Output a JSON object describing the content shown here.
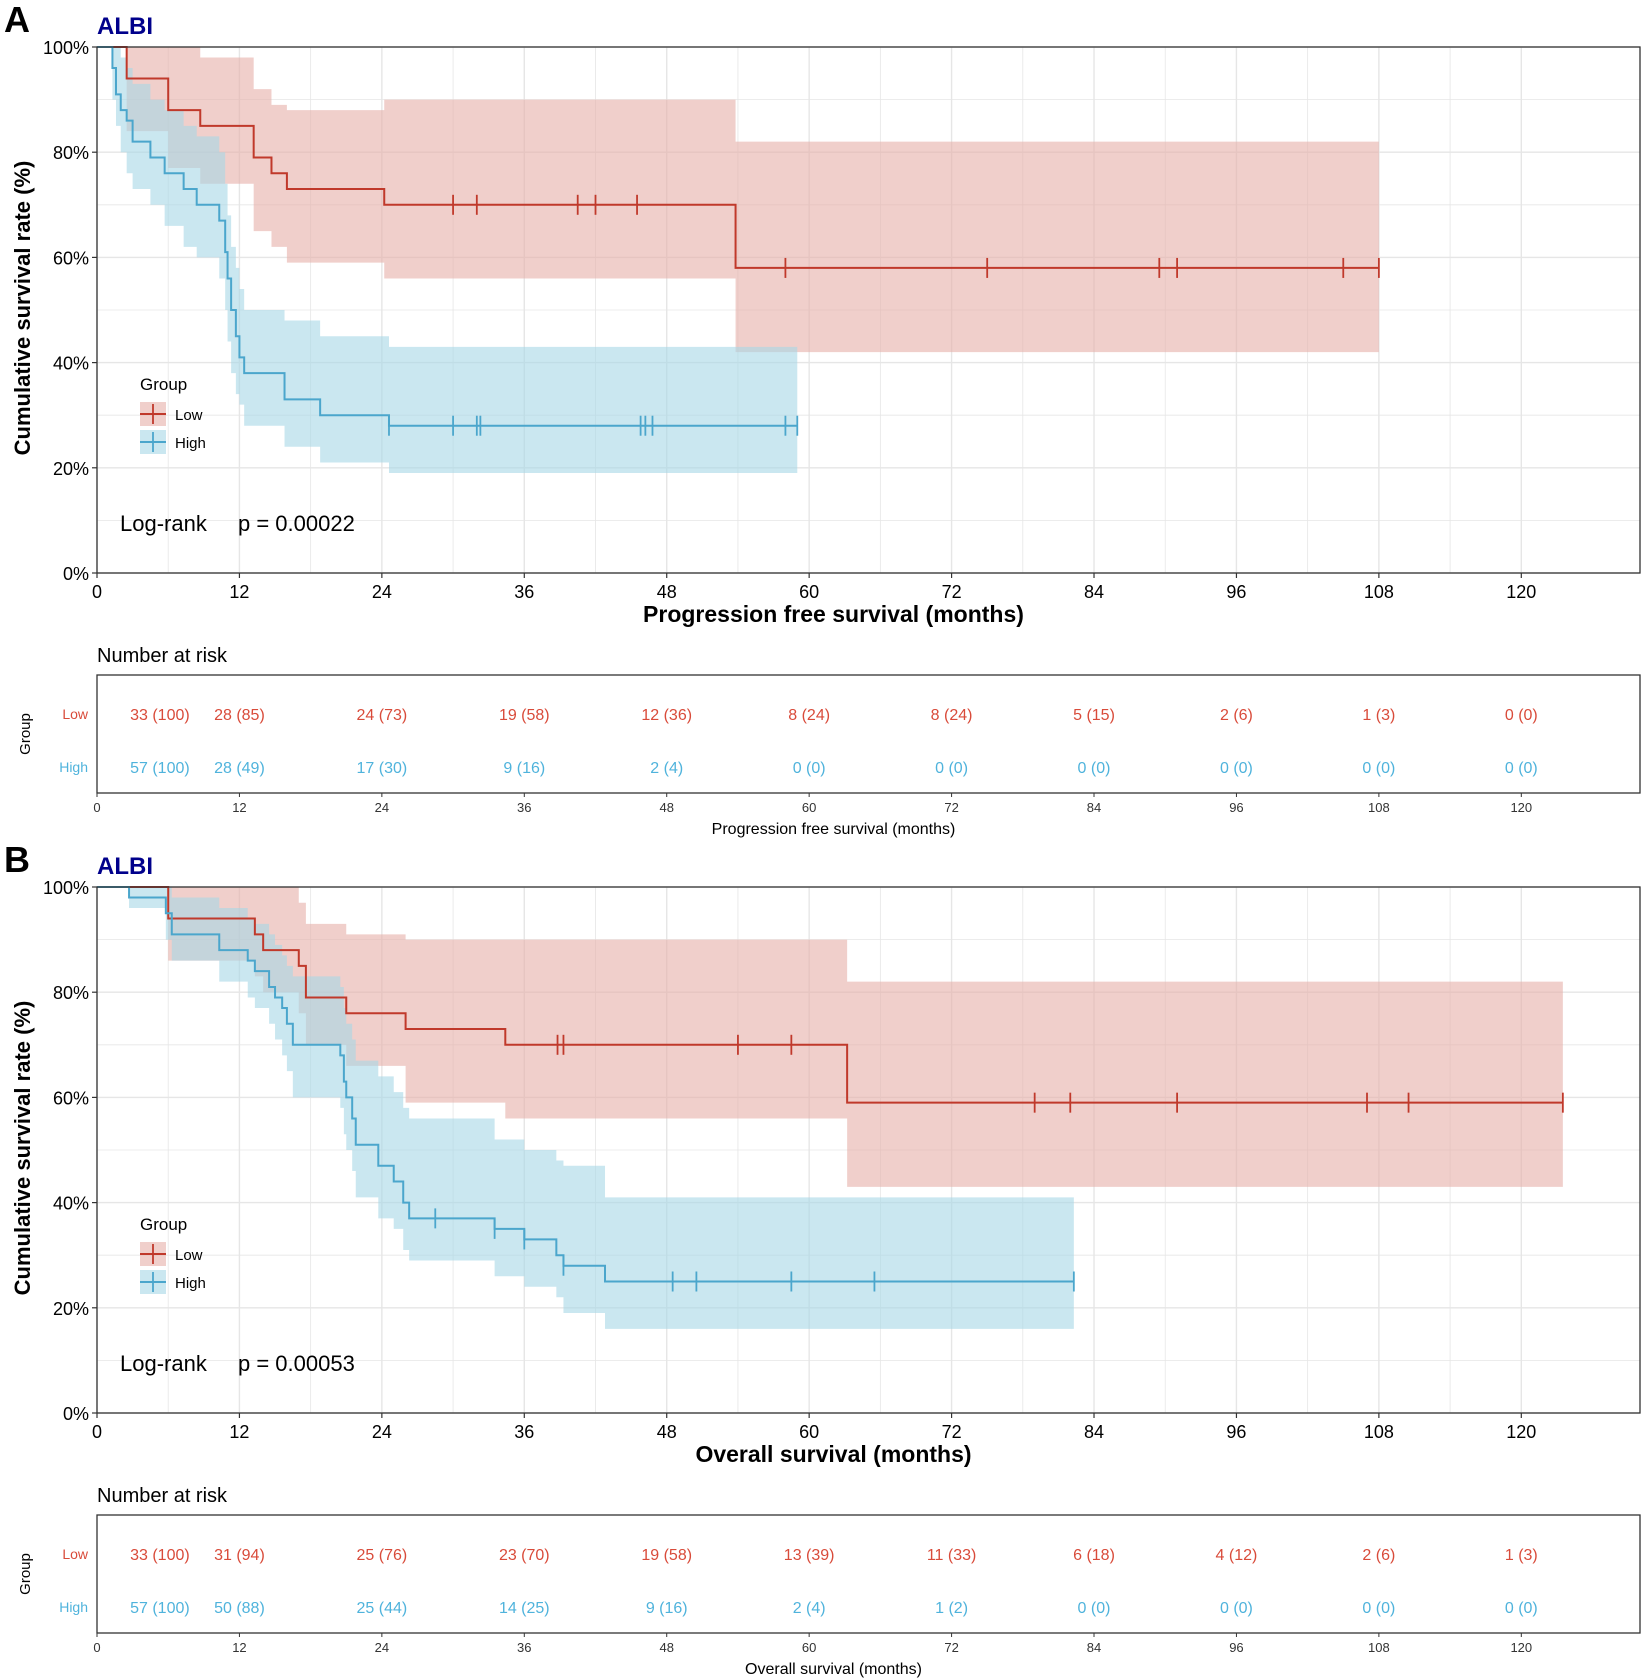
{
  "colors": {
    "low_line": "#C0392B",
    "low_band": "#E6AFA9",
    "high_line": "#4BA6CC",
    "high_band": "#A6D7E6",
    "albi_title": "#00008B",
    "low_table_text": "#D94B3A",
    "high_table_text": "#4FB3DC",
    "grid": "#E6E6E6",
    "frame": "#333333"
  },
  "chart_data": [
    {
      "type": "line",
      "panel_label": "A",
      "title": "ALBI",
      "xlabel": "Progression free survival (months)",
      "ylabel": "Cumulative survival rate (%)",
      "xlim": [
        0,
        130
      ],
      "ylim": [
        0,
        100
      ],
      "xticks": [
        "0",
        "12",
        "24",
        "36",
        "48",
        "60",
        "72",
        "84",
        "96",
        "108",
        "120"
      ],
      "yticks": [
        "0%",
        "20%",
        "40%",
        "60%",
        "80%",
        "100%"
      ],
      "grid": true,
      "legend": {
        "title": "Group",
        "position": "left-middle",
        "entries": [
          "Low",
          "High"
        ]
      },
      "annotation": {
        "test": "Log-rank",
        "pvalue": "p = 0.00022"
      },
      "series": [
        {
          "name": "Low",
          "steps": [
            [
              0,
              100
            ],
            [
              2.5,
              94
            ],
            [
              6,
              88
            ],
            [
              8.7,
              85
            ],
            [
              13.2,
              79
            ],
            [
              14.7,
              76
            ],
            [
              16,
              73
            ],
            [
              24.2,
              70
            ],
            [
              53.8,
              58
            ],
            [
              108,
              58
            ]
          ],
          "ci_steps": [
            [
              0,
              100,
              100
            ],
            [
              2.5,
              100,
              84
            ],
            [
              6,
              100,
              77
            ],
            [
              8.7,
              98,
              74
            ],
            [
              13.2,
              92,
              65
            ],
            [
              14.7,
              89,
              62
            ],
            [
              16,
              88,
              59
            ],
            [
              24.2,
              90,
              56
            ],
            [
              53.8,
              82,
              42
            ],
            [
              108,
              82,
              42
            ]
          ],
          "censor": [
            30,
            32,
            40.5,
            42,
            45.5,
            58,
            75,
            89.5,
            91,
            105,
            108
          ]
        },
        {
          "name": "High",
          "steps": [
            [
              0,
              100
            ],
            [
              1.3,
              96
            ],
            [
              1.6,
              91
            ],
            [
              2,
              88
            ],
            [
              2.5,
              86
            ],
            [
              3,
              82
            ],
            [
              4.5,
              79
            ],
            [
              5.7,
              76
            ],
            [
              7.3,
              73
            ],
            [
              8.4,
              70
            ],
            [
              10.3,
              67
            ],
            [
              10.8,
              61
            ],
            [
              11,
              56
            ],
            [
              11.3,
              50
            ],
            [
              11.7,
              45
            ],
            [
              12,
              41
            ],
            [
              12.4,
              38
            ],
            [
              15.8,
              33
            ],
            [
              18.8,
              30
            ],
            [
              24.6,
              28
            ],
            [
              59,
              28
            ]
          ],
          "ci_steps": [
            [
              0,
              100,
              100
            ],
            [
              1.3,
              100,
              90
            ],
            [
              1.6,
              100,
              85
            ],
            [
              2,
              98,
              80
            ],
            [
              2.5,
              96,
              76
            ],
            [
              3,
              93,
              73
            ],
            [
              4.5,
              90,
              70
            ],
            [
              5.7,
              88,
              66
            ],
            [
              7.3,
              85,
              62
            ],
            [
              8.4,
              83,
              60
            ],
            [
              10.3,
              80,
              56
            ],
            [
              10.8,
              74,
              50
            ],
            [
              11,
              68,
              44
            ],
            [
              11.3,
              62,
              38
            ],
            [
              11.7,
              58,
              34
            ],
            [
              12,
              54,
              32
            ],
            [
              12.4,
              50,
              28
            ],
            [
              15.8,
              48,
              24
            ],
            [
              18.8,
              45,
              21
            ],
            [
              24.6,
              43,
              19
            ],
            [
              59,
              43,
              19
            ]
          ],
          "censor": [
            24.6,
            30,
            32,
            32.3,
            45.8,
            46.2,
            46.8,
            58,
            59
          ]
        }
      ],
      "risk_table": {
        "title": "Number at risk",
        "ylabel": "Group",
        "xlabel": "Progression free survival (months)",
        "rows": [
          {
            "name": "Low",
            "values": [
              "33 (100)",
              "28 (85)",
              "24 (73)",
              "19 (58)",
              "12 (36)",
              "8 (24)",
              "8 (24)",
              "5 (15)",
              "2 (6)",
              "1 (3)",
              "0 (0)"
            ]
          },
          {
            "name": "High",
            "values": [
              "57 (100)",
              "28 (49)",
              "17 (30)",
              "9 (16)",
              "2 (4)",
              "0 (0)",
              "0 (0)",
              "0 (0)",
              "0 (0)",
              "0 (0)",
              "0 (0)"
            ]
          }
        ]
      }
    },
    {
      "type": "line",
      "panel_label": "B",
      "title": "ALBI",
      "xlabel": "Overall survival (months)",
      "ylabel": "Cumulative survival rate (%)",
      "xlim": [
        0,
        130
      ],
      "ylim": [
        0,
        100
      ],
      "xticks": [
        "0",
        "12",
        "24",
        "36",
        "48",
        "60",
        "72",
        "84",
        "96",
        "108",
        "120"
      ],
      "yticks": [
        "0%",
        "20%",
        "40%",
        "60%",
        "80%",
        "100%"
      ],
      "grid": true,
      "legend": {
        "title": "Group",
        "position": "left-middle",
        "entries": [
          "Low",
          "High"
        ]
      },
      "annotation": {
        "test": "Log-rank",
        "pvalue": "p = 0.00053"
      },
      "series": [
        {
          "name": "Low",
          "steps": [
            [
              0,
              100
            ],
            [
              6,
              94
            ],
            [
              13.3,
              91
            ],
            [
              14,
              88
            ],
            [
              17,
              85
            ],
            [
              17.6,
              79
            ],
            [
              21,
              76
            ],
            [
              26,
              73
            ],
            [
              34.4,
              70
            ],
            [
              63.2,
              59
            ],
            [
              123.5,
              59
            ]
          ],
          "ci_steps": [
            [
              0,
              100,
              100
            ],
            [
              6,
              100,
              86
            ],
            [
              13.3,
              100,
              83
            ],
            [
              14,
              100,
              80
            ],
            [
              17,
              97,
              76
            ],
            [
              17.6,
              93,
              70
            ],
            [
              21,
              91,
              66
            ],
            [
              26,
              90,
              59
            ],
            [
              34.4,
              90,
              56
            ],
            [
              63.2,
              82,
              43
            ],
            [
              123.5,
              82,
              43
            ]
          ],
          "censor": [
            38.8,
            39.3,
            54,
            58.5,
            79,
            82,
            91,
            107,
            110.5,
            123.5
          ]
        },
        {
          "name": "High",
          "steps": [
            [
              0,
              100
            ],
            [
              2.7,
              98
            ],
            [
              5.8,
              95
            ],
            [
              6.3,
              91
            ],
            [
              10.3,
              88
            ],
            [
              12.7,
              86
            ],
            [
              13.3,
              84
            ],
            [
              14.5,
              81
            ],
            [
              15,
              79
            ],
            [
              15.6,
              77
            ],
            [
              16,
              74
            ],
            [
              16.5,
              70
            ],
            [
              20.5,
              68
            ],
            [
              20.8,
              63
            ],
            [
              21,
              60
            ],
            [
              21.5,
              56
            ],
            [
              21.8,
              51
            ],
            [
              23.7,
              47
            ],
            [
              25,
              44
            ],
            [
              25.8,
              40
            ],
            [
              26.3,
              37
            ],
            [
              33.5,
              35
            ],
            [
              36,
              33
            ],
            [
              38.7,
              30
            ],
            [
              39.3,
              28
            ],
            [
              42.8,
              25
            ],
            [
              82.3,
              25
            ]
          ],
          "ci_steps": [
            [
              0,
              100,
              100
            ],
            [
              2.7,
              100,
              96
            ],
            [
              5.8,
              100,
              90
            ],
            [
              6.3,
              98,
              86
            ],
            [
              10.3,
              96,
              82
            ],
            [
              12.7,
              94,
              79
            ],
            [
              13.3,
              93,
              77
            ],
            [
              14.5,
              91,
              74
            ],
            [
              15,
              89,
              71
            ],
            [
              15.6,
              87,
              68
            ],
            [
              16,
              85,
              65
            ],
            [
              16.5,
              83,
              60
            ],
            [
              20.5,
              81,
              58
            ],
            [
              20.8,
              77,
              53
            ],
            [
              21,
              74,
              50
            ],
            [
              21.5,
              71,
              46
            ],
            [
              21.8,
              67,
              41
            ],
            [
              23.7,
              64,
              37
            ],
            [
              25,
              61,
              35
            ],
            [
              25.8,
              58,
              31
            ],
            [
              26.3,
              56,
              29
            ],
            [
              33.5,
              52,
              26
            ],
            [
              36,
              50,
              24
            ],
            [
              38.7,
              48,
              22
            ],
            [
              39.3,
              47,
              19
            ],
            [
              42.8,
              41,
              16
            ],
            [
              82.3,
              41,
              16
            ]
          ],
          "censor": [
            28.5,
            33.5,
            36,
            39.3,
            48.5,
            50.5,
            58.5,
            65.5,
            82.3
          ]
        }
      ],
      "risk_table": {
        "title": "Number at risk",
        "ylabel": "Group",
        "xlabel": "Overall survival (months)",
        "rows": [
          {
            "name": "Low",
            "values": [
              "33 (100)",
              "31 (94)",
              "25 (76)",
              "23 (70)",
              "19 (58)",
              "13 (39)",
              "11 (33)",
              "6 (18)",
              "4 (12)",
              "2 (6)",
              "1 (3)"
            ]
          },
          {
            "name": "High",
            "values": [
              "57 (100)",
              "50 (88)",
              "25 (44)",
              "14 (25)",
              "9 (16)",
              "2 (4)",
              "1 (2)",
              "0 (0)",
              "0 (0)",
              "0 (0)",
              "0 (0)"
            ]
          }
        ]
      }
    }
  ]
}
